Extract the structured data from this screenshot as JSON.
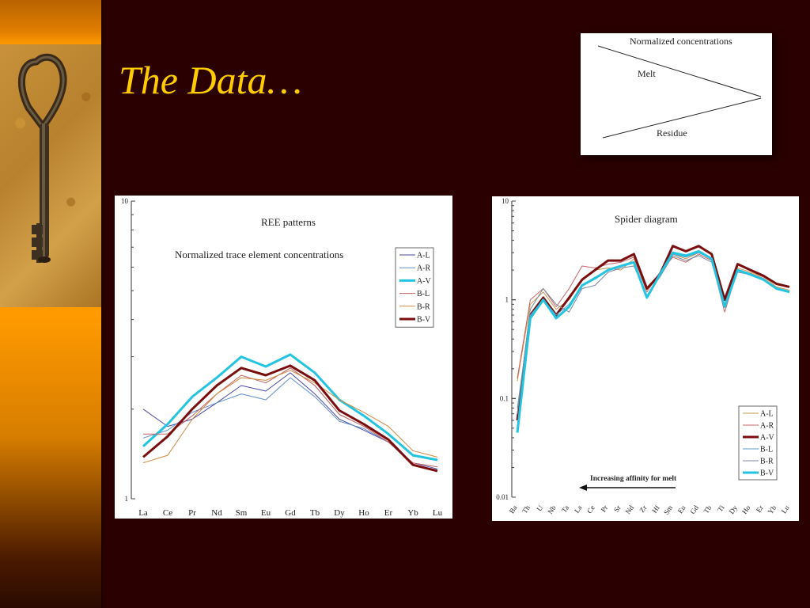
{
  "slide": {
    "title": "The Data…",
    "colors": {
      "title": "#ffcc00",
      "background": "#2a0000",
      "sidebar": "#ff9900"
    },
    "decoration": "key-photo"
  },
  "melt_diagram": {
    "header": "Normalized concentrations",
    "melt_label": "Melt",
    "residue_label": "Residue"
  },
  "chart_data": [
    {
      "type": "line",
      "title": "REE patterns",
      "subtitle": "Normalized trace element concentrations",
      "yscale": "log",
      "ylim": [
        1,
        10
      ],
      "ytick_labels": [
        "10",
        "1"
      ],
      "categories": [
        "La",
        "Ce",
        "Pr",
        "Nd",
        "Sm",
        "Eu",
        "Gd",
        "Tb",
        "Dy",
        "Ho",
        "Er",
        "Yb",
        "Lu"
      ],
      "legend_position": "top-right",
      "series": [
        {
          "name": "A-L",
          "color": "#4a4aa8",
          "width": 1,
          "values": [
            2.0,
            1.75,
            1.85,
            2.1,
            2.4,
            2.3,
            2.65,
            2.25,
            1.85,
            1.7,
            1.55,
            1.32,
            1.26
          ]
        },
        {
          "name": "A-R",
          "color": "#5f8fc8",
          "width": 1,
          "values": [
            1.6,
            1.7,
            1.95,
            2.1,
            2.25,
            2.15,
            2.55,
            2.2,
            1.82,
            1.72,
            1.55,
            1.3,
            1.25
          ]
        },
        {
          "name": "A-V",
          "color": "#22c4e0",
          "width": 3,
          "values": [
            1.5,
            1.78,
            2.2,
            2.55,
            3.0,
            2.78,
            3.05,
            2.65,
            2.15,
            1.9,
            1.65,
            1.4,
            1.35
          ]
        },
        {
          "name": "B-L",
          "color": "#c06060",
          "width": 1,
          "values": [
            1.65,
            1.65,
            1.9,
            2.25,
            2.6,
            2.45,
            2.75,
            2.4,
            1.92,
            1.75,
            1.55,
            1.32,
            1.28
          ]
        },
        {
          "name": "B-R",
          "color": "#d0883c",
          "width": 1,
          "values": [
            1.32,
            1.4,
            1.85,
            2.25,
            2.55,
            2.5,
            2.7,
            2.45,
            2.15,
            1.95,
            1.75,
            1.45,
            1.38
          ]
        },
        {
          "name": "B-V",
          "color": "#7a0e0e",
          "width": 3,
          "values": [
            1.38,
            1.62,
            2.0,
            2.4,
            2.75,
            2.6,
            2.8,
            2.5,
            1.98,
            1.78,
            1.58,
            1.3,
            1.24
          ]
        }
      ]
    },
    {
      "type": "line",
      "title": "Spider diagram",
      "annotation": "Increasing affinity for melt",
      "yscale": "log",
      "ylim": [
        0.01,
        10
      ],
      "ytick_labels": [
        "10",
        "1",
        "0.1",
        "0.01"
      ],
      "categories": [
        "Ba",
        "Th",
        "U",
        "Nb",
        "Ta",
        "La",
        "Ce",
        "Pr",
        "Sr",
        "Nd",
        "Zr",
        "Hf",
        "Sm",
        "Eu",
        "Gd",
        "Tb",
        "Ti",
        "Dy",
        "Ho",
        "Er",
        "Yb",
        "Lu"
      ],
      "legend_position": "bottom-right",
      "series": [
        {
          "name": "A-L",
          "color": "#c89a50",
          "width": 1,
          "values": [
            0.15,
            0.9,
            1.2,
            0.8,
            1.0,
            1.6,
            2.0,
            2.1,
            2.0,
            2.6,
            1.3,
            1.7,
            2.9,
            2.6,
            3.0,
            2.6,
            0.85,
            2.1,
            1.9,
            1.7,
            1.35,
            1.25
          ]
        },
        {
          "name": "A-R",
          "color": "#c86464",
          "width": 1,
          "values": [
            0.16,
            1.0,
            1.3,
            0.85,
            1.3,
            2.2,
            2.1,
            2.3,
            2.4,
            2.7,
            1.2,
            1.9,
            2.7,
            2.4,
            2.9,
            2.5,
            0.75,
            2.0,
            1.85,
            1.65,
            1.3,
            1.2
          ]
        },
        {
          "name": "A-V",
          "color": "#7a0e0e",
          "width": 3,
          "values": [
            0.06,
            0.7,
            1.05,
            0.7,
            1.05,
            1.6,
            2.0,
            2.5,
            2.5,
            2.9,
            1.3,
            1.8,
            3.5,
            3.1,
            3.5,
            2.9,
            1.0,
            2.3,
            2.0,
            1.75,
            1.45,
            1.35
          ]
        },
        {
          "name": "B-L",
          "color": "#5aa0c8",
          "width": 1,
          "values": [
            0.08,
            0.7,
            1.0,
            0.7,
            0.9,
            1.4,
            1.7,
            2.0,
            2.2,
            2.4,
            1.1,
            1.8,
            2.9,
            2.7,
            3.0,
            2.6,
            0.9,
            2.0,
            1.8,
            1.6,
            1.3,
            1.2
          ]
        },
        {
          "name": "B-R",
          "color": "#7a8aa0",
          "width": 1,
          "values": [
            0.07,
            0.8,
            1.3,
            0.9,
            0.75,
            1.3,
            1.4,
            1.9,
            2.1,
            2.2,
            1.1,
            1.7,
            2.8,
            2.5,
            2.8,
            2.4,
            0.9,
            1.9,
            1.8,
            1.6,
            1.3,
            1.2
          ]
        },
        {
          "name": "B-V",
          "color": "#22c4e0",
          "width": 3,
          "values": [
            0.045,
            0.65,
            1.0,
            0.65,
            0.85,
            1.4,
            1.65,
            2.0,
            2.2,
            2.4,
            1.05,
            1.8,
            3.0,
            2.8,
            3.1,
            2.6,
            0.85,
            2.0,
            1.8,
            1.6,
            1.3,
            1.2
          ]
        }
      ]
    }
  ]
}
